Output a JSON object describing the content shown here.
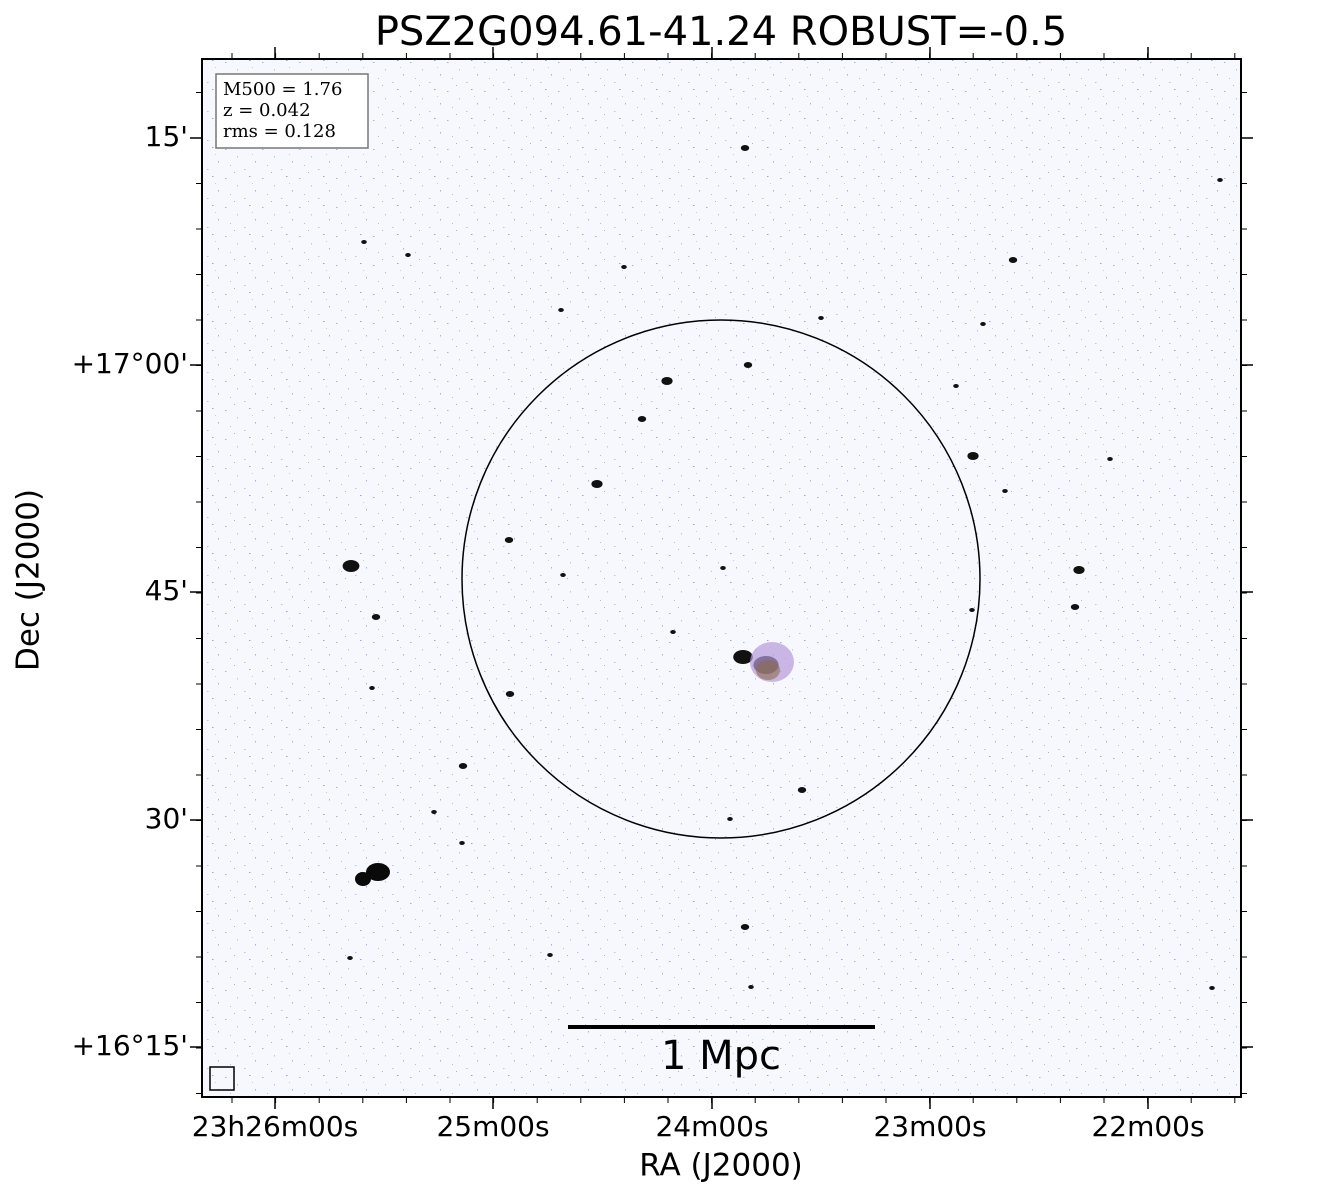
{
  "title": "PSZ2G094.61-41.24 ROBUST=-0.5",
  "x_axis": {
    "label": "RA (J2000)",
    "ticks": [
      "23h26m00s",
      "25m00s",
      "24m00s",
      "23m00s",
      "22m00s"
    ]
  },
  "y_axis": {
    "label": "Dec (J2000)",
    "ticks": [
      "15'",
      "+17°00'",
      "45'",
      "30'",
      "+16°15'"
    ]
  },
  "info": [
    "M500 = 1.76",
    "z = 0.042",
    "rms = 0.128"
  ],
  "scale_bar": "1 Mpc"
}
